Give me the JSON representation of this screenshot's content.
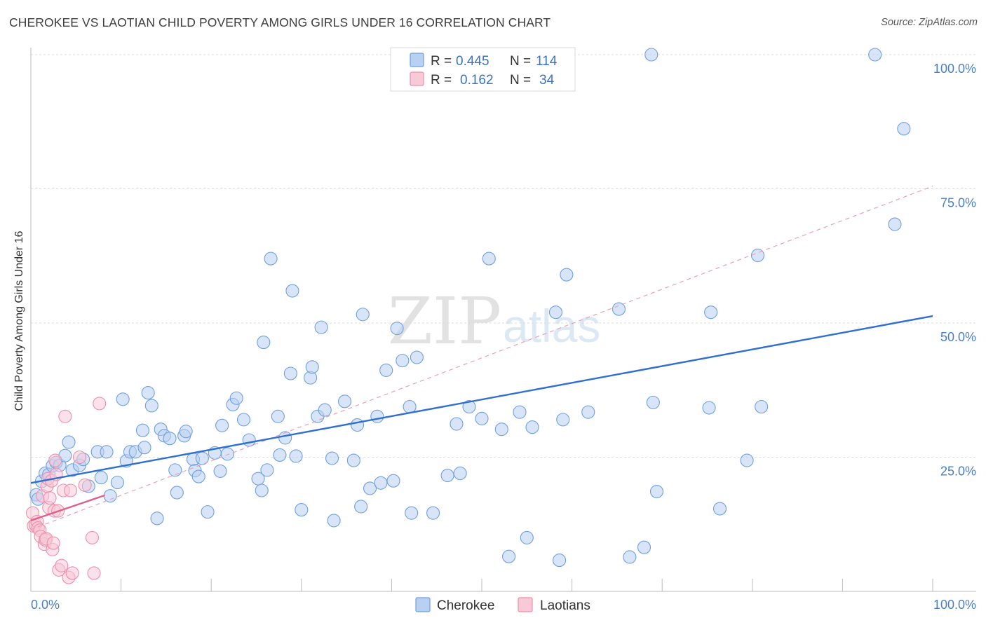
{
  "chart_data": {
    "type": "scatter",
    "title": "CHEROKEE VS LAOTIAN CHILD POVERTY AMONG GIRLS UNDER 16 CORRELATION CHART",
    "source": "Source: ZipAtlas.com",
    "ylabel": "Child Poverty Among Girls Under 16",
    "xlim": [
      0,
      100
    ],
    "ylim": [
      0,
      100
    ],
    "x_tick_labels": [
      "0.0%",
      "100.0%"
    ],
    "y_ticks": [
      {
        "value": 25,
        "label": "25.0%"
      },
      {
        "value": 50,
        "label": "50.0%"
      },
      {
        "value": 75,
        "label": "75.0%"
      },
      {
        "value": 100,
        "label": "100.0%"
      }
    ],
    "grid": true,
    "legend_placement": "top-center",
    "stats": [
      {
        "r_label": "R =",
        "r_value": "0.445",
        "n_label": "N =",
        "n_value": "114"
      },
      {
        "r_label": "R =",
        "r_value": "0.162",
        "n_label": "N =",
        "n_value": "34"
      }
    ],
    "watermark": {
      "zip": "ZIP",
      "atlas": "atlas"
    },
    "series": [
      {
        "name": "Cherokee",
        "color": "#6f9fe0",
        "fill": "#b8d0f2",
        "trend": {
          "x0": 0,
          "y0": 20.2,
          "x1": 100,
          "y1": 51.3,
          "color": "#2f6fcf"
        },
        "trend_dashed": {
          "x0": 0,
          "y0": 11.5,
          "x1": 100,
          "y1": 75.5,
          "color": "#e8a0b5"
        },
        "points": [
          [
            0.6,
            18.0
          ],
          [
            0.8,
            17.2
          ],
          [
            1.2,
            20.5
          ],
          [
            1.6,
            22.0
          ],
          [
            2.0,
            21.8
          ],
          [
            2.4,
            23.4
          ],
          [
            2.8,
            24.0
          ],
          [
            3.2,
            23.5
          ],
          [
            3.8,
            25.3
          ],
          [
            4.2,
            27.8
          ],
          [
            4.6,
            22.6
          ],
          [
            5.4,
            23.5
          ],
          [
            5.8,
            24.6
          ],
          [
            6.4,
            19.6
          ],
          [
            7.4,
            26.0
          ],
          [
            7.8,
            21.2
          ],
          [
            8.4,
            26.0
          ],
          [
            8.8,
            17.8
          ],
          [
            9.6,
            20.3
          ],
          [
            10.2,
            35.8
          ],
          [
            10.6,
            24.3
          ],
          [
            11.0,
            26.0
          ],
          [
            11.6,
            26.0
          ],
          [
            12.4,
            30.0
          ],
          [
            12.6,
            26.8
          ],
          [
            13.0,
            37.0
          ],
          [
            13.4,
            34.6
          ],
          [
            14.0,
            13.6
          ],
          [
            14.4,
            30.2
          ],
          [
            14.8,
            29.0
          ],
          [
            15.4,
            28.5
          ],
          [
            16.0,
            22.6
          ],
          [
            16.2,
            18.4
          ],
          [
            17.0,
            29.0
          ],
          [
            17.2,
            29.8
          ],
          [
            18.0,
            24.6
          ],
          [
            18.2,
            22.5
          ],
          [
            18.6,
            21.4
          ],
          [
            19.0,
            24.8
          ],
          [
            19.6,
            14.8
          ],
          [
            20.4,
            25.8
          ],
          [
            21.0,
            22.4
          ],
          [
            21.2,
            30.9
          ],
          [
            21.8,
            25.6
          ],
          [
            22.4,
            34.8
          ],
          [
            22.8,
            36.0
          ],
          [
            23.6,
            32.0
          ],
          [
            24.2,
            28.2
          ],
          [
            25.2,
            21.0
          ],
          [
            25.6,
            18.8
          ],
          [
            25.8,
            46.4
          ],
          [
            26.2,
            22.6
          ],
          [
            26.6,
            62.0
          ],
          [
            27.4,
            32.6
          ],
          [
            27.6,
            25.4
          ],
          [
            28.2,
            28.6
          ],
          [
            28.8,
            40.6
          ],
          [
            29.0,
            56.0
          ],
          [
            29.4,
            25.2
          ],
          [
            30.0,
            15.2
          ],
          [
            31.0,
            39.8
          ],
          [
            31.2,
            41.8
          ],
          [
            31.8,
            32.6
          ],
          [
            32.2,
            49.2
          ],
          [
            32.6,
            33.8
          ],
          [
            33.4,
            24.8
          ],
          [
            33.6,
            13.2
          ],
          [
            34.8,
            35.4
          ],
          [
            35.8,
            24.4
          ],
          [
            36.2,
            31.0
          ],
          [
            36.6,
            15.8
          ],
          [
            36.8,
            51.6
          ],
          [
            37.6,
            19.2
          ],
          [
            38.4,
            32.6
          ],
          [
            38.8,
            20.2
          ],
          [
            39.4,
            41.2
          ],
          [
            40.2,
            20.6
          ],
          [
            40.6,
            49.0
          ],
          [
            41.2,
            43.0
          ],
          [
            42.0,
            34.4
          ],
          [
            42.8,
            43.6
          ],
          [
            42.2,
            14.6
          ],
          [
            44.6,
            14.6
          ],
          [
            46.2,
            21.6
          ],
          [
            47.2,
            31.2
          ],
          [
            47.6,
            22.0
          ],
          [
            48.6,
            34.4
          ],
          [
            50.0,
            32.2
          ],
          [
            50.8,
            62.0
          ],
          [
            52.2,
            30.2
          ],
          [
            53.0,
            6.5
          ],
          [
            54.2,
            33.4
          ],
          [
            55.0,
            10.0
          ],
          [
            55.6,
            30.6
          ],
          [
            58.2,
            52.0
          ],
          [
            58.6,
            5.8
          ],
          [
            59.0,
            32.0
          ],
          [
            59.4,
            59.0
          ],
          [
            61.8,
            33.4
          ],
          [
            65.2,
            52.6
          ],
          [
            66.4,
            6.4
          ],
          [
            68.0,
            8.2
          ],
          [
            68.8,
            100.0
          ],
          [
            69.0,
            35.2
          ],
          [
            69.4,
            18.6
          ],
          [
            75.2,
            34.2
          ],
          [
            75.4,
            52.0
          ],
          [
            76.4,
            15.4
          ],
          [
            79.4,
            24.4
          ],
          [
            80.6,
            62.6
          ],
          [
            81.0,
            34.4
          ],
          [
            93.6,
            100.0
          ],
          [
            95.8,
            68.4
          ],
          [
            96.8,
            86.2
          ]
        ]
      },
      {
        "name": "Laotians",
        "color": "#ee8fac",
        "fill": "#f8c9d7",
        "trend": {
          "x0": 0,
          "y0": 13.2,
          "x1": 8.2,
          "y1": 17.9,
          "color": "#e0608a"
        },
        "points": [
          [
            0.2,
            14.6
          ],
          [
            0.3,
            12.2
          ],
          [
            0.5,
            12.4
          ],
          [
            0.7,
            13.0
          ],
          [
            0.8,
            11.8
          ],
          [
            1.0,
            11.4
          ],
          [
            1.1,
            10.2
          ],
          [
            1.3,
            17.8
          ],
          [
            1.5,
            8.8
          ],
          [
            1.6,
            9.6
          ],
          [
            1.7,
            9.8
          ],
          [
            1.8,
            19.6
          ],
          [
            1.9,
            21.0
          ],
          [
            2.0,
            15.6
          ],
          [
            2.1,
            17.4
          ],
          [
            2.3,
            20.6
          ],
          [
            2.4,
            7.8
          ],
          [
            2.5,
            9.0
          ],
          [
            2.6,
            15.0
          ],
          [
            2.7,
            24.4
          ],
          [
            2.8,
            21.8
          ],
          [
            3.0,
            15.0
          ],
          [
            3.1,
            4.0
          ],
          [
            3.4,
            4.8
          ],
          [
            3.6,
            18.8
          ],
          [
            3.8,
            32.6
          ],
          [
            4.2,
            2.6
          ],
          [
            4.4,
            18.8
          ],
          [
            4.6,
            3.4
          ],
          [
            5.4,
            25.0
          ],
          [
            6.0,
            19.8
          ],
          [
            6.8,
            10.0
          ],
          [
            7.0,
            3.4
          ],
          [
            7.6,
            35.0
          ]
        ]
      }
    ]
  }
}
